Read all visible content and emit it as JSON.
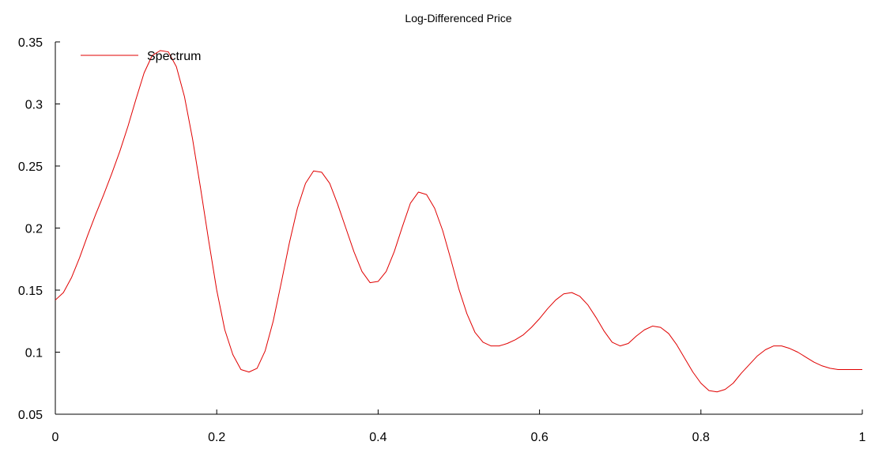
{
  "chart_data": {
    "type": "line",
    "title": "Log-Differenced Price",
    "xlabel": "",
    "ylabel": "",
    "xlim": [
      0,
      1
    ],
    "ylim": [
      0.05,
      0.35
    ],
    "x_ticks": [
      0,
      0.2,
      0.4,
      0.6,
      0.8,
      1
    ],
    "x_tick_labels": [
      "0",
      "0.2",
      "0.4",
      "0.6",
      "0.8",
      "1"
    ],
    "y_ticks": [
      0.05,
      0.1,
      0.15,
      0.2,
      0.25,
      0.3,
      0.35
    ],
    "y_tick_labels": [
      "0.05",
      "0.1",
      "0.15",
      "0.2",
      "0.25",
      "0.3",
      "0.35"
    ],
    "grid": false,
    "legend_position": "top-left",
    "series": [
      {
        "name": "Spectrum",
        "color": "#e00000",
        "x": [
          0,
          0.01,
          0.02,
          0.03,
          0.04,
          0.05,
          0.06,
          0.07,
          0.08,
          0.09,
          0.1,
          0.11,
          0.12,
          0.13,
          0.14,
          0.15,
          0.16,
          0.17,
          0.18,
          0.19,
          0.2,
          0.21,
          0.22,
          0.23,
          0.24,
          0.25,
          0.26,
          0.27,
          0.28,
          0.29,
          0.3,
          0.31,
          0.32,
          0.33,
          0.34,
          0.35,
          0.36,
          0.37,
          0.38,
          0.39,
          0.4,
          0.41,
          0.42,
          0.43,
          0.44,
          0.45,
          0.46,
          0.47,
          0.48,
          0.49,
          0.5,
          0.51,
          0.52,
          0.53,
          0.54,
          0.55,
          0.56,
          0.57,
          0.58,
          0.59,
          0.6,
          0.61,
          0.62,
          0.63,
          0.64,
          0.65,
          0.66,
          0.67,
          0.68,
          0.69,
          0.7,
          0.71,
          0.72,
          0.73,
          0.74,
          0.75,
          0.76,
          0.77,
          0.78,
          0.79,
          0.8,
          0.81,
          0.82,
          0.83,
          0.84,
          0.85,
          0.86,
          0.87,
          0.88,
          0.89,
          0.9,
          0.91,
          0.92,
          0.93,
          0.94,
          0.95,
          0.96,
          0.97,
          0.98,
          0.99,
          1.0
        ],
        "values": [
          0.142,
          0.148,
          0.16,
          0.176,
          0.194,
          0.211,
          0.227,
          0.244,
          0.262,
          0.282,
          0.304,
          0.325,
          0.339,
          0.343,
          0.342,
          0.33,
          0.306,
          0.272,
          0.232,
          0.19,
          0.15,
          0.118,
          0.098,
          0.086,
          0.084,
          0.087,
          0.101,
          0.125,
          0.156,
          0.188,
          0.216,
          0.236,
          0.246,
          0.245,
          0.236,
          0.219,
          0.2,
          0.181,
          0.165,
          0.156,
          0.157,
          0.165,
          0.181,
          0.201,
          0.22,
          0.229,
          0.227,
          0.216,
          0.198,
          0.175,
          0.151,
          0.131,
          0.116,
          0.108,
          0.105,
          0.105,
          0.107,
          0.11,
          0.114,
          0.12,
          0.127,
          0.135,
          0.142,
          0.147,
          0.148,
          0.145,
          0.138,
          0.128,
          0.117,
          0.108,
          0.105,
          0.107,
          0.113,
          0.118,
          0.121,
          0.12,
          0.115,
          0.106,
          0.095,
          0.084,
          0.075,
          0.069,
          0.068,
          0.07,
          0.075,
          0.083,
          0.09,
          0.097,
          0.102,
          0.105,
          0.105,
          0.103,
          0.1,
          0.096,
          0.092,
          0.089,
          0.087,
          0.086,
          0.086,
          0.086,
          0.086
        ]
      }
    ]
  }
}
